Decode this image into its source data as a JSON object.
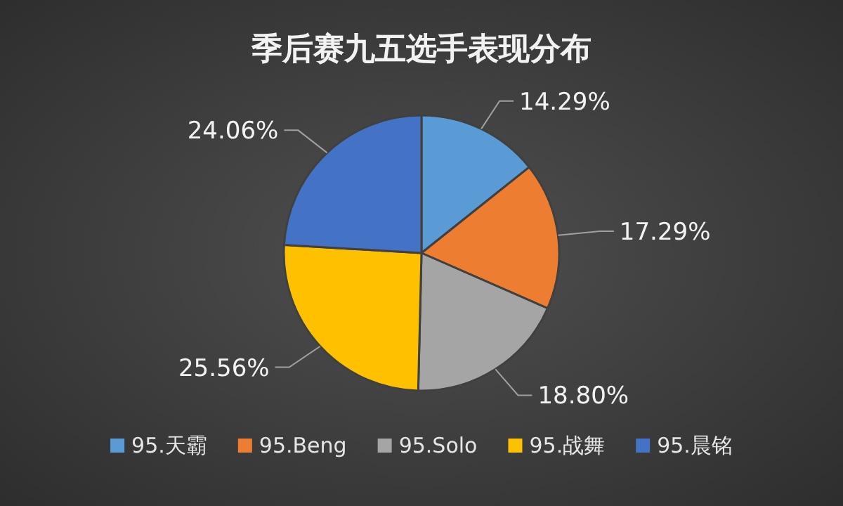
{
  "chart_data": {
    "type": "pie",
    "title": "季后赛九五选手表现分布",
    "categories": [
      "95.天霸",
      "95.Beng",
      "95.Solo",
      "95.战舞",
      "95.晨铭"
    ],
    "values": [
      14.29,
      17.29,
      18.8,
      25.56,
      24.06
    ],
    "colors": [
      "#5b9bd5",
      "#ed7d31",
      "#a5a5a5",
      "#ffc000",
      "#4472c4"
    ],
    "value_labels": [
      "14.29%",
      "17.29%",
      "18.80%",
      "25.56%",
      "24.06%"
    ],
    "legend": "bottom"
  }
}
